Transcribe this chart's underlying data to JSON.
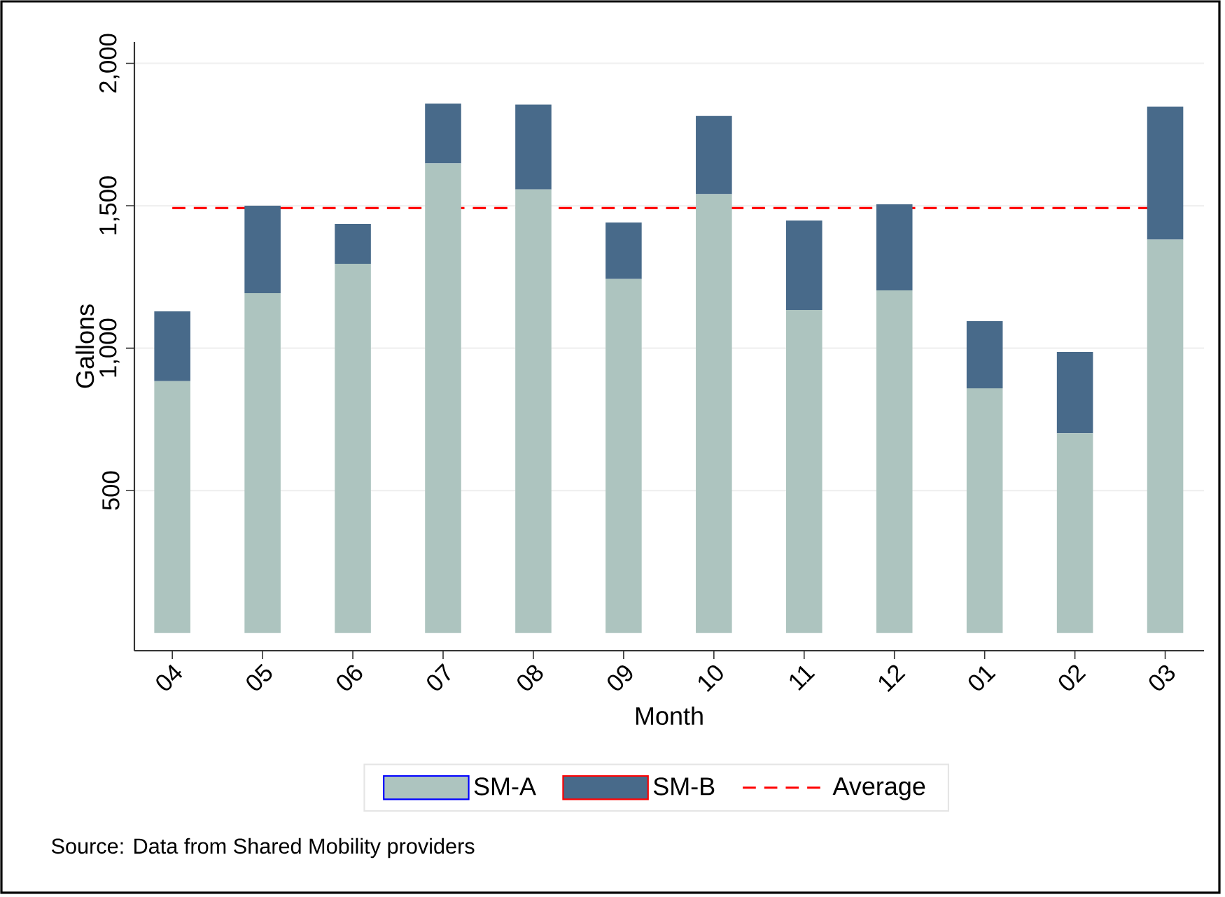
{
  "chart_data": {
    "type": "bar",
    "stacked": true,
    "xlabel": "Month",
    "ylabel": "Gallons",
    "categories": [
      "04",
      "05",
      "06",
      "07",
      "08",
      "09",
      "10",
      "11",
      "12",
      "01",
      "02",
      "03"
    ],
    "series": [
      {
        "name": "SM-A",
        "color": "#adc4bf",
        "values": [
          884,
          1193,
          1296,
          1649,
          1557,
          1243,
          1541,
          1134,
          1203,
          859,
          701,
          1381
        ]
      },
      {
        "name": "SM-B",
        "color": "#486a8a",
        "values": [
          245,
          307,
          140,
          210,
          298,
          198,
          274,
          314,
          302,
          236,
          286,
          467
        ]
      }
    ],
    "ylim": [
      -62,
      2075
    ],
    "yticks": [
      500,
      {
        "value": 1000,
        "label": "1,000"
      },
      {
        "value": 1500,
        "label": "1,500"
      },
      {
        "value": 2000,
        "label": "2,000"
      }
    ],
    "grid": "y",
    "legend": "bottom",
    "ref_lines": [
      {
        "axis": "y",
        "value": 1492,
        "label": "Average",
        "color": "#ff0000",
        "line_style": "dashed"
      }
    ],
    "annotations": [
      "Source: Data from Shared Mobility providers"
    ]
  }
}
